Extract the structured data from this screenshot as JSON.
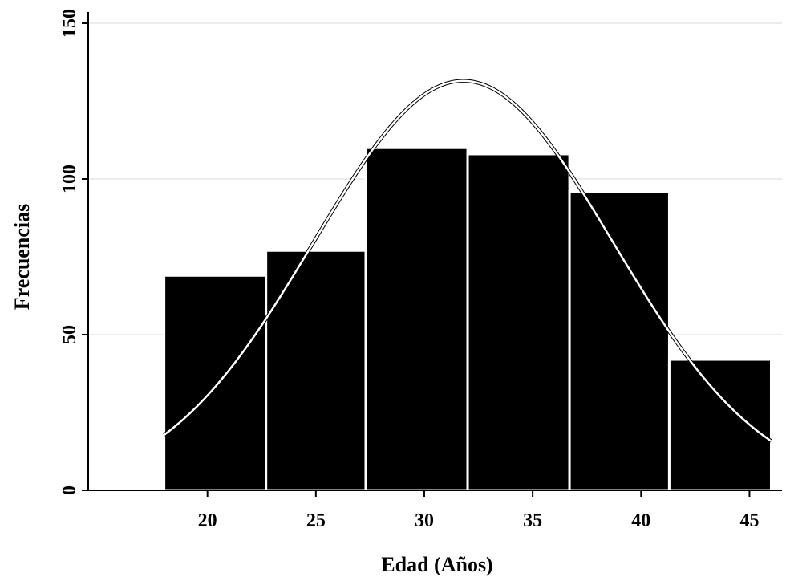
{
  "chart_data": {
    "type": "bar",
    "subtype": "histogram-with-normal-curve",
    "xlabel": "Edad (Años)",
    "ylabel": "Frecuencias",
    "xlim": [
      14.5,
      46.5
    ],
    "ylim": [
      0,
      150
    ],
    "x_ticks": [
      20,
      25,
      30,
      35,
      40,
      45
    ],
    "y_ticks": [
      0,
      50,
      100,
      150
    ],
    "grid": true,
    "bins": [
      {
        "start": 18.0,
        "end": 22.7,
        "value": 69
      },
      {
        "start": 22.7,
        "end": 27.3,
        "value": 77
      },
      {
        "start": 27.3,
        "end": 32.0,
        "value": 110
      },
      {
        "start": 32.0,
        "end": 36.7,
        "value": 108
      },
      {
        "start": 36.7,
        "end": 41.3,
        "value": 96
      },
      {
        "start": 41.3,
        "end": 46.0,
        "value": 42
      }
    ],
    "normal_curve": {
      "mean": 31.8,
      "sd": 6.9,
      "peak": 131.5,
      "x_range": [
        18.0,
        46.0
      ]
    },
    "colors": {
      "bars": "#000000",
      "bar_border": "#ffffff",
      "curve_inside": "#ffffff",
      "curve_outside": "#000000",
      "grid": "#e6e6e6",
      "axis": "#000000"
    }
  }
}
